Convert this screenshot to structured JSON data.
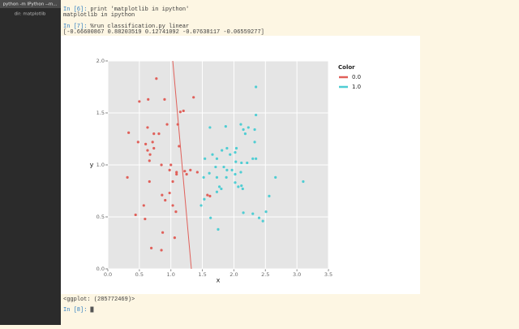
{
  "window": {
    "tab_title": "python -m IPython --m...",
    "directory": "dir: matplotlib"
  },
  "terminal": {
    "lines_before": [
      {
        "prompt": "In [6]:",
        "command": "print 'matplotlib in ipython'"
      },
      {
        "output": "matplotlib in ipython"
      },
      {
        "prompt": "In [7]:",
        "command": "%run classification.py linear"
      },
      {
        "output": "[-0.66600867  0.88203519  0.12741092 -0.07638117 -0.06559277]"
      }
    ],
    "lines_after": [
      {
        "output": "<ggplot: (285772469)>"
      },
      {
        "prompt": "In [8]:",
        "command": ""
      }
    ]
  },
  "chart_data": {
    "type": "scatter",
    "x_label": "x",
    "y_label": "y",
    "legend_title": "Color",
    "xlim": [
      0,
      3.5
    ],
    "ylim": [
      0,
      2
    ],
    "xticks": [
      {
        "value": 0,
        "label": "0.0"
      },
      {
        "value": 0.5,
        "label": "0.5"
      },
      {
        "value": 1,
        "label": "1.0"
      },
      {
        "value": 1.5,
        "label": "1.5"
      },
      {
        "value": 2,
        "label": "2.0"
      },
      {
        "value": 2.5,
        "label": "2.5"
      },
      {
        "value": 3,
        "label": "3.0"
      },
      {
        "value": 3.5,
        "label": "3.5"
      }
    ],
    "yticks": [
      {
        "value": 0,
        "label": "0.0"
      },
      {
        "value": 0.5,
        "label": "0.5"
      },
      {
        "value": 1,
        "label": "1.0"
      },
      {
        "value": 1.5,
        "label": "1.5"
      },
      {
        "value": 2,
        "label": "2.0"
      }
    ],
    "grid": true,
    "legend_position": "right",
    "series": [
      {
        "name": "0.0",
        "color": "#e0605a",
        "x": [
          0.33,
          0.5,
          0.64,
          0.77,
          0.9,
          1.36,
          1.2,
          0.63,
          0.73,
          0.81,
          0.94,
          1.11,
          0.48,
          0.6,
          0.63,
          0.71,
          0.67,
          0.66,
          0.73,
          1.13,
          0.85,
          1.0,
          0.98,
          1.09,
          1.09,
          1.22,
          1.31,
          1.42,
          0.31,
          0.66,
          1.03,
          1.25,
          0.86,
          0.91,
          0.98,
          1.58,
          1.62,
          0.57,
          1.03,
          1.08,
          0.44,
          0.59,
          0.87,
          0.69,
          0.85,
          1.06,
          1.15
        ],
        "values": [
          1.31,
          1.61,
          1.63,
          1.83,
          1.63,
          1.65,
          1.52,
          1.36,
          1.3,
          1.3,
          1.39,
          1.39,
          1.22,
          1.2,
          1.14,
          1.22,
          1.1,
          1.04,
          1.16,
          1.18,
          1.0,
          1.0,
          0.95,
          0.93,
          0.91,
          0.94,
          0.95,
          0.93,
          0.88,
          0.84,
          0.84,
          0.91,
          0.71,
          0.66,
          0.73,
          0.71,
          0.7,
          0.61,
          0.61,
          0.55,
          0.52,
          0.48,
          0.35,
          0.2,
          0.18,
          0.3,
          1.51
        ]
      },
      {
        "name": "1.0",
        "color": "#4fcdd3",
        "x": [
          2.35,
          1.62,
          1.87,
          2.11,
          2.23,
          2.35,
          2.15,
          2.18,
          2.33,
          2.33,
          1.81,
          1.89,
          1.94,
          2.02,
          2.04,
          1.66,
          1.54,
          1.73,
          2.3,
          2.35,
          1.71,
          1.84,
          2.03,
          2.12,
          2.21,
          1.89,
          1.97,
          2.02,
          2.11,
          1.52,
          1.61,
          1.73,
          1.88,
          2.02,
          2.66,
          3.1,
          1.53,
          1.73,
          1.77,
          1.8,
          2.07,
          2.14,
          2.12,
          1.48,
          1.63,
          1.75,
          2.15,
          2.3,
          2.4,
          2.46,
          2.51,
          2.56
        ],
        "values": [
          1.75,
          1.36,
          1.37,
          1.39,
          1.36,
          1.48,
          1.34,
          1.3,
          1.34,
          1.22,
          1.14,
          1.16,
          1.1,
          1.12,
          1.16,
          1.1,
          1.06,
          1.06,
          1.06,
          1.06,
          0.98,
          0.98,
          1.03,
          1.02,
          1.02,
          0.95,
          0.95,
          0.91,
          0.93,
          0.88,
          0.92,
          0.88,
          0.88,
          0.83,
          0.88,
          0.84,
          0.67,
          0.74,
          0.79,
          0.77,
          0.79,
          0.77,
          0.8,
          0.61,
          0.49,
          0.38,
          0.54,
          0.53,
          0.49,
          0.46,
          0.55,
          0.7
        ]
      }
    ],
    "line": {
      "color": "#e0605a",
      "x": [
        1.03,
        1.325
      ],
      "y": [
        2.0,
        0.0
      ]
    }
  }
}
